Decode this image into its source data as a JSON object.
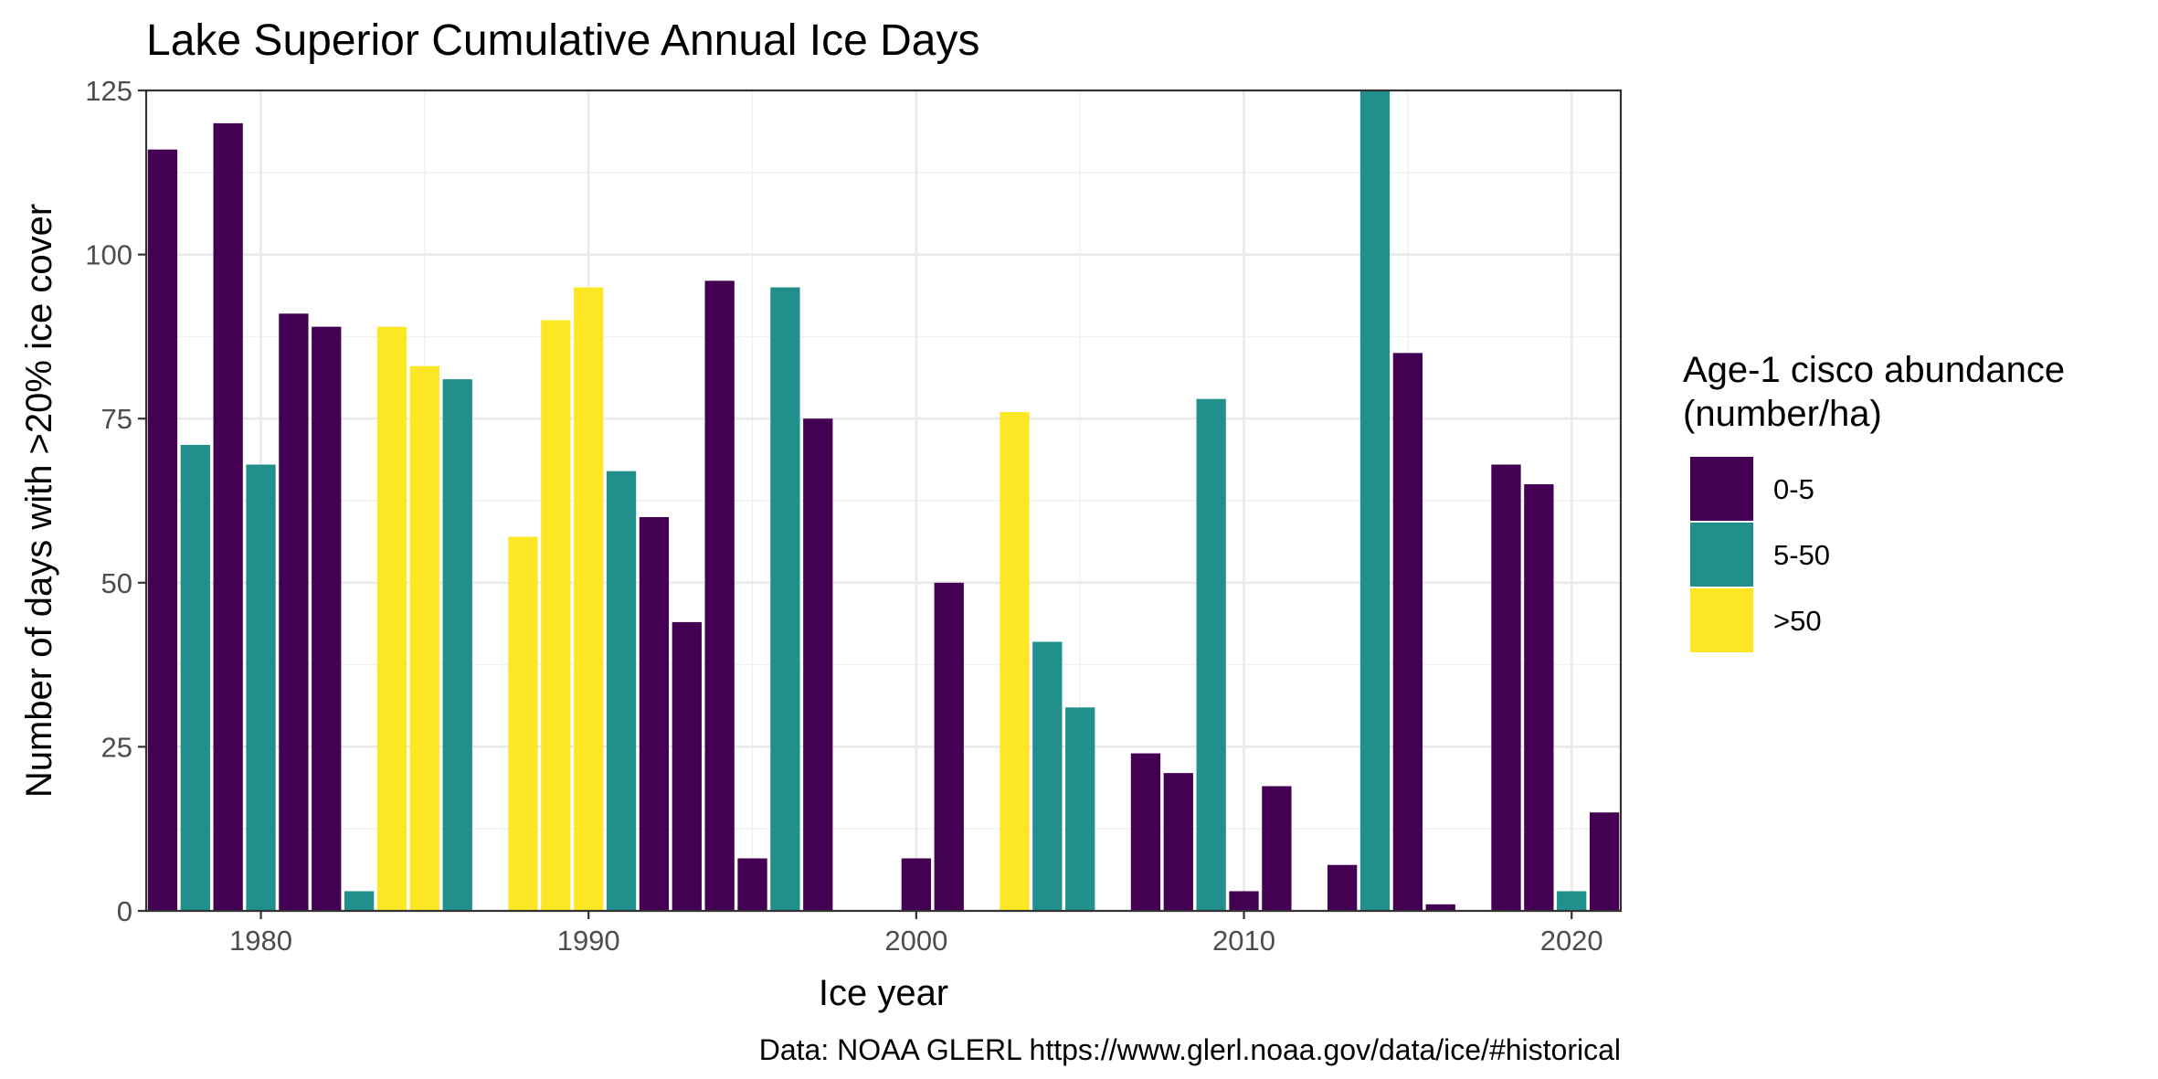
{
  "chart_data": {
    "type": "bar",
    "title": "Lake Superior Cumulative Annual Ice Days",
    "xlabel": "Ice year",
    "ylabel": "Number of days with >20% ice cover",
    "caption": "Data: NOAA GLERL https://www.glerl.noaa.gov/data/ice/#historical",
    "xlim": [
      1976.5,
      2021.5
    ],
    "ylim": [
      0,
      125
    ],
    "x_ticks": [
      1980,
      1990,
      2000,
      2010,
      2020
    ],
    "y_ticks": [
      0,
      25,
      50,
      75,
      100,
      125
    ],
    "grid": true,
    "legend": {
      "title_line1": "Age-1 cisco abundance",
      "title_line2": "(number/ha)",
      "position": "right",
      "entries": [
        {
          "key": "low",
          "label": "0-5",
          "color": "#440154"
        },
        {
          "key": "mid",
          "label": "5-50",
          "color": "#21908C"
        },
        {
          "key": "high",
          "label": ">50",
          "color": "#FDE725"
        }
      ]
    },
    "data": [
      {
        "year": 1977,
        "days": 116,
        "group": "low"
      },
      {
        "year": 1978,
        "days": 71,
        "group": "mid"
      },
      {
        "year": 1979,
        "days": 120,
        "group": "low"
      },
      {
        "year": 1980,
        "days": 68,
        "group": "mid"
      },
      {
        "year": 1981,
        "days": 91,
        "group": "low"
      },
      {
        "year": 1982,
        "days": 89,
        "group": "low"
      },
      {
        "year": 1983,
        "days": 3,
        "group": "mid"
      },
      {
        "year": 1984,
        "days": 89,
        "group": "high"
      },
      {
        "year": 1985,
        "days": 83,
        "group": "high"
      },
      {
        "year": 1986,
        "days": 81,
        "group": "mid"
      },
      {
        "year": 1988,
        "days": 57,
        "group": "high"
      },
      {
        "year": 1989,
        "days": 90,
        "group": "high"
      },
      {
        "year": 1990,
        "days": 95,
        "group": "high"
      },
      {
        "year": 1991,
        "days": 67,
        "group": "mid"
      },
      {
        "year": 1992,
        "days": 60,
        "group": "low"
      },
      {
        "year": 1993,
        "days": 44,
        "group": "low"
      },
      {
        "year": 1994,
        "days": 96,
        "group": "low"
      },
      {
        "year": 1995,
        "days": 8,
        "group": "low"
      },
      {
        "year": 1996,
        "days": 95,
        "group": "mid"
      },
      {
        "year": 1997,
        "days": 75,
        "group": "low"
      },
      {
        "year": 2000,
        "days": 8,
        "group": "low"
      },
      {
        "year": 2001,
        "days": 50,
        "group": "low"
      },
      {
        "year": 2003,
        "days": 76,
        "group": "high"
      },
      {
        "year": 2004,
        "days": 41,
        "group": "mid"
      },
      {
        "year": 2005,
        "days": 31,
        "group": "mid"
      },
      {
        "year": 2007,
        "days": 24,
        "group": "low"
      },
      {
        "year": 2008,
        "days": 21,
        "group": "low"
      },
      {
        "year": 2009,
        "days": 78,
        "group": "mid"
      },
      {
        "year": 2010,
        "days": 3,
        "group": "low"
      },
      {
        "year": 2011,
        "days": 19,
        "group": "low"
      },
      {
        "year": 2013,
        "days": 7,
        "group": "low"
      },
      {
        "year": 2014,
        "days": 126,
        "group": "mid"
      },
      {
        "year": 2015,
        "days": 85,
        "group": "low"
      },
      {
        "year": 2016,
        "days": 1,
        "group": "low"
      },
      {
        "year": 2018,
        "days": 68,
        "group": "low"
      },
      {
        "year": 2019,
        "days": 65,
        "group": "low"
      },
      {
        "year": 2020,
        "days": 3,
        "group": "mid"
      },
      {
        "year": 2021,
        "days": 15,
        "group": "low"
      }
    ]
  }
}
